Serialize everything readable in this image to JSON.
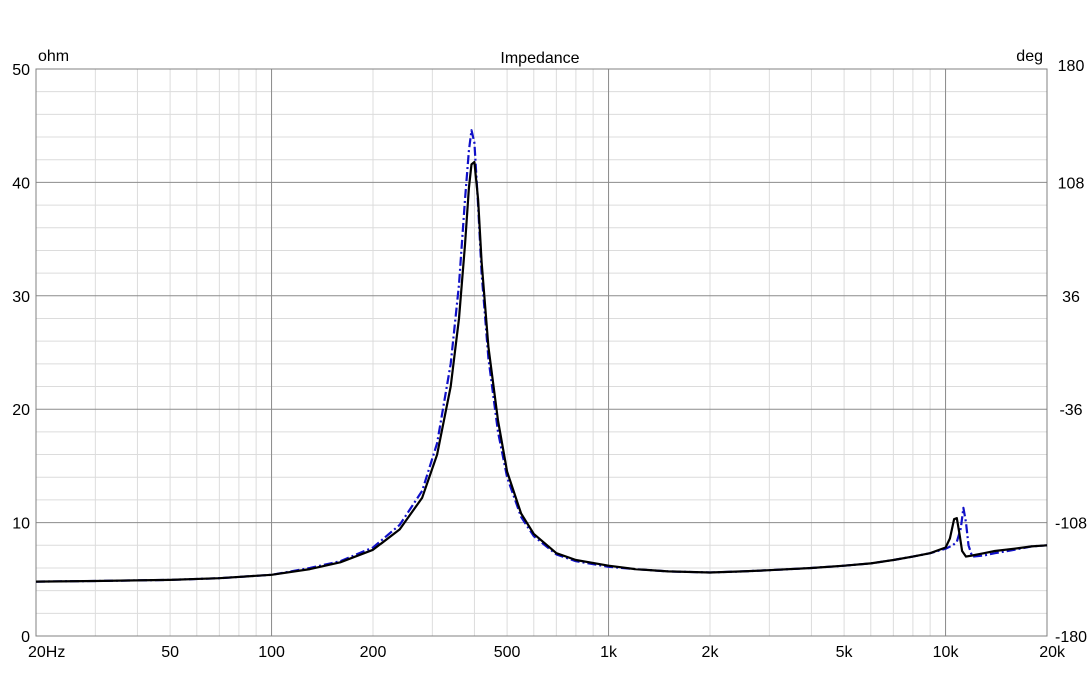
{
  "chart_data": {
    "type": "line",
    "title": "Impedance",
    "y_left_unit": "ohm",
    "y_right_unit": "deg",
    "x_scale": "log",
    "xlim": [
      20,
      20000
    ],
    "ylim": [
      0,
      50
    ],
    "y2lim": [
      -180,
      180
    ],
    "grid": true,
    "x_ticks": [
      {
        "value": 20,
        "label": "20Hz"
      },
      {
        "value": 50,
        "label": "50"
      },
      {
        "value": 100,
        "label": "100"
      },
      {
        "value": 200,
        "label": "200"
      },
      {
        "value": 500,
        "label": "500"
      },
      {
        "value": 1000,
        "label": "1k"
      },
      {
        "value": 2000,
        "label": "2k"
      },
      {
        "value": 5000,
        "label": "5k"
      },
      {
        "value": 10000,
        "label": "10k"
      },
      {
        "value": 20000,
        "label": "20k"
      }
    ],
    "y_ticks": [
      0,
      10,
      20,
      30,
      40,
      50
    ],
    "y2_ticks": [
      -180,
      -108,
      -36,
      36,
      108,
      180
    ],
    "series": [
      {
        "color": "#1010c8",
        "style": "dashdot",
        "x": [
          20,
          30,
          50,
          70,
          100,
          130,
          160,
          200,
          240,
          280,
          310,
          340,
          360,
          375,
          385,
          392,
          400,
          410,
          420,
          440,
          470,
          500,
          550,
          600,
          700,
          800,
          1000,
          1200,
          1500,
          2000,
          2500,
          3000,
          4000,
          5000,
          6000,
          7000,
          8000,
          9000,
          10000,
          10500,
          10800,
          11100,
          11300,
          11500,
          11700,
          12000,
          13000,
          14000,
          16000,
          18000,
          20000
        ],
        "values": [
          4.8,
          4.85,
          4.95,
          5.1,
          5.4,
          6.0,
          6.6,
          7.8,
          9.8,
          12.8,
          17.0,
          24.0,
          31.0,
          38.5,
          42.8,
          44.6,
          43.5,
          38.0,
          32.0,
          24.5,
          18.0,
          14.0,
          10.5,
          8.8,
          7.2,
          6.6,
          6.1,
          5.9,
          5.7,
          5.6,
          5.7,
          5.8,
          6.0,
          6.2,
          6.4,
          6.7,
          7.0,
          7.3,
          7.7,
          8.0,
          8.3,
          9.5,
          11.3,
          10.0,
          8.0,
          7.0,
          7.1,
          7.3,
          7.6,
          7.9,
          8.0
        ]
      },
      {
        "color": "#000000",
        "style": "solid",
        "x": [
          20,
          30,
          50,
          70,
          100,
          130,
          160,
          200,
          240,
          280,
          310,
          340,
          360,
          375,
          385,
          392,
          400,
          410,
          420,
          440,
          470,
          500,
          550,
          600,
          700,
          800,
          1000,
          1200,
          1500,
          2000,
          2500,
          3000,
          4000,
          5000,
          6000,
          7000,
          8000,
          9000,
          10000,
          10300,
          10600,
          10800,
          11000,
          11200,
          11500,
          12000,
          13000,
          14000,
          16000,
          18000,
          20000
        ],
        "values": [
          4.8,
          4.85,
          4.95,
          5.1,
          5.4,
          5.9,
          6.5,
          7.6,
          9.4,
          12.2,
          16.0,
          22.0,
          28.0,
          34.5,
          39.5,
          41.6,
          41.8,
          38.5,
          33.0,
          25.5,
          19.0,
          14.5,
          10.8,
          9.0,
          7.3,
          6.7,
          6.2,
          5.9,
          5.7,
          5.6,
          5.7,
          5.8,
          6.0,
          6.2,
          6.4,
          6.7,
          7.0,
          7.3,
          7.8,
          8.6,
          10.3,
          10.4,
          9.0,
          7.5,
          7.0,
          7.1,
          7.3,
          7.5,
          7.7,
          7.9,
          8.0
        ]
      }
    ]
  }
}
